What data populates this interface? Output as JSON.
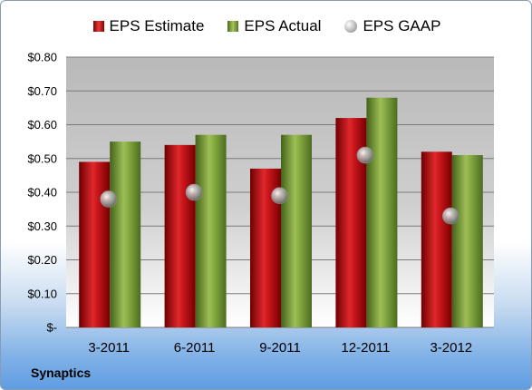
{
  "chart_data": {
    "type": "bar",
    "categories": [
      "3-2011",
      "6-2011",
      "9-2011",
      "12-2011",
      "3-2012"
    ],
    "series": [
      {
        "name": "EPS Estimate",
        "kind": "bar",
        "color": "#c0161b",
        "values": [
          0.49,
          0.54,
          0.47,
          0.62,
          0.52
        ]
      },
      {
        "name": "EPS Actual",
        "kind": "bar",
        "color": "#77a03a",
        "values": [
          0.55,
          0.57,
          0.57,
          0.68,
          0.51
        ]
      },
      {
        "name": "EPS GAAP",
        "kind": "scatter",
        "color": "#a8a8a8",
        "values": [
          0.38,
          0.4,
          0.39,
          0.51,
          0.33
        ]
      }
    ],
    "ylim": [
      0,
      0.8
    ],
    "y_ticks": [
      0,
      0.1,
      0.2,
      0.3,
      0.4,
      0.5,
      0.6,
      0.7,
      0.8
    ],
    "y_tick_labels": [
      "$-",
      "$0.10",
      "$0.20",
      "$0.30",
      "$0.40",
      "$0.50",
      "$0.60",
      "$0.70",
      "$0.80"
    ],
    "grid": true,
    "legend": "top",
    "title": "",
    "xlabel": "",
    "ylabel": ""
  },
  "company": "Synaptics"
}
